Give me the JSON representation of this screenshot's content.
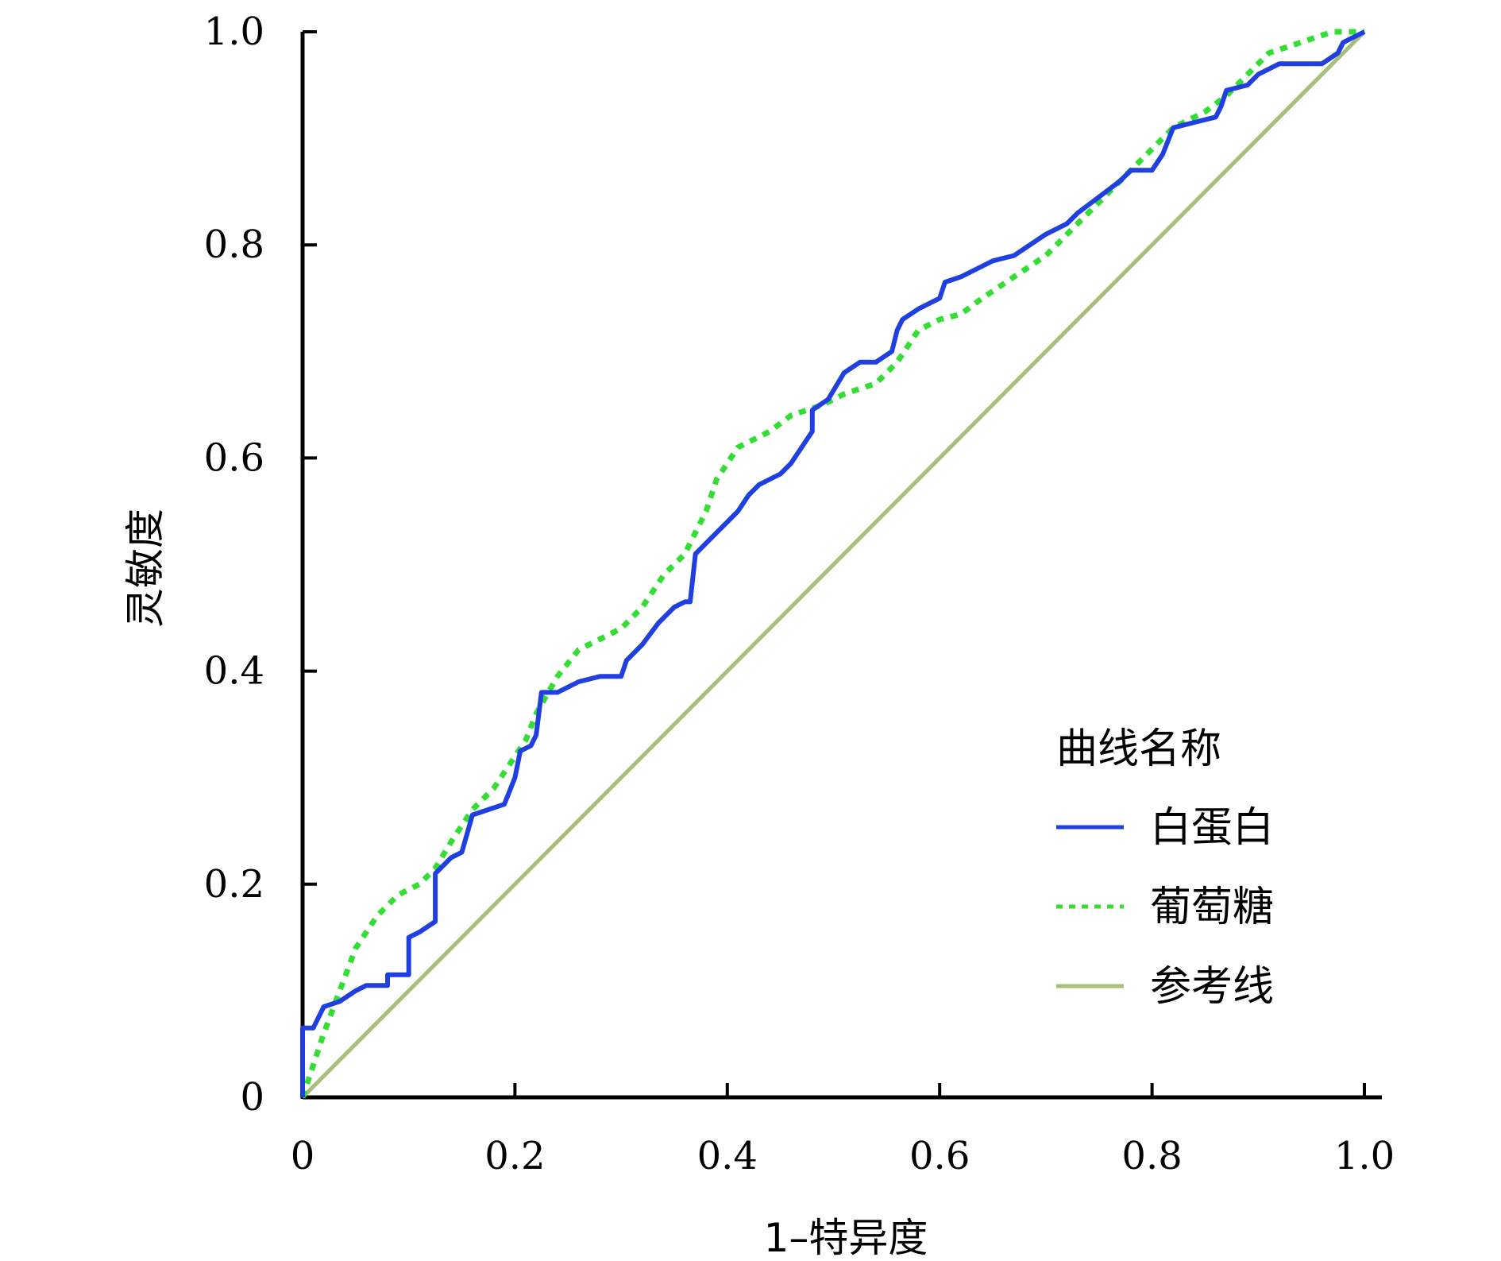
{
  "chart_data": {
    "type": "line",
    "title": "",
    "xlabel": "1–特异度",
    "ylabel": "灵敏度",
    "xlim": [
      0,
      1.0
    ],
    "ylim": [
      0,
      1.0
    ],
    "x_ticks": [
      "0",
      "0.2",
      "0.4",
      "0.6",
      "0.8",
      "1.0"
    ],
    "y_ticks": [
      "0",
      "0.2",
      "0.4",
      "0.6",
      "0.8",
      "1.0"
    ],
    "grid": false,
    "legend": {
      "title": "曲线名称",
      "position": "bottom-right"
    },
    "series": [
      {
        "name": "白蛋白",
        "color": "#1f3fe0",
        "style": "solid",
        "points": [
          [
            0,
            0
          ],
          [
            0,
            0.065
          ],
          [
            0.01,
            0.065
          ],
          [
            0.02,
            0.085
          ],
          [
            0.035,
            0.09
          ],
          [
            0.05,
            0.1
          ],
          [
            0.06,
            0.105
          ],
          [
            0.08,
            0.105
          ],
          [
            0.08,
            0.115
          ],
          [
            0.1,
            0.115
          ],
          [
            0.1,
            0.15
          ],
          [
            0.11,
            0.155
          ],
          [
            0.125,
            0.165
          ],
          [
            0.125,
            0.21
          ],
          [
            0.14,
            0.225
          ],
          [
            0.15,
            0.23
          ],
          [
            0.16,
            0.265
          ],
          [
            0.175,
            0.27
          ],
          [
            0.19,
            0.275
          ],
          [
            0.2,
            0.3
          ],
          [
            0.205,
            0.325
          ],
          [
            0.215,
            0.33
          ],
          [
            0.22,
            0.34
          ],
          [
            0.225,
            0.38
          ],
          [
            0.24,
            0.38
          ],
          [
            0.26,
            0.39
          ],
          [
            0.28,
            0.395
          ],
          [
            0.3,
            0.395
          ],
          [
            0.305,
            0.41
          ],
          [
            0.32,
            0.425
          ],
          [
            0.335,
            0.445
          ],
          [
            0.35,
            0.46
          ],
          [
            0.36,
            0.465
          ],
          [
            0.365,
            0.465
          ],
          [
            0.37,
            0.51
          ],
          [
            0.39,
            0.53
          ],
          [
            0.4,
            0.54
          ],
          [
            0.41,
            0.55
          ],
          [
            0.42,
            0.565
          ],
          [
            0.43,
            0.575
          ],
          [
            0.45,
            0.585
          ],
          [
            0.46,
            0.595
          ],
          [
            0.47,
            0.61
          ],
          [
            0.48,
            0.625
          ],
          [
            0.48,
            0.645
          ],
          [
            0.495,
            0.655
          ],
          [
            0.51,
            0.68
          ],
          [
            0.525,
            0.69
          ],
          [
            0.54,
            0.69
          ],
          [
            0.555,
            0.7
          ],
          [
            0.56,
            0.72
          ],
          [
            0.565,
            0.73
          ],
          [
            0.58,
            0.74
          ],
          [
            0.6,
            0.75
          ],
          [
            0.605,
            0.765
          ],
          [
            0.62,
            0.77
          ],
          [
            0.64,
            0.78
          ],
          [
            0.65,
            0.785
          ],
          [
            0.67,
            0.79
          ],
          [
            0.685,
            0.8
          ],
          [
            0.7,
            0.81
          ],
          [
            0.72,
            0.82
          ],
          [
            0.73,
            0.83
          ],
          [
            0.75,
            0.845
          ],
          [
            0.77,
            0.86
          ],
          [
            0.78,
            0.87
          ],
          [
            0.8,
            0.87
          ],
          [
            0.81,
            0.885
          ],
          [
            0.82,
            0.91
          ],
          [
            0.84,
            0.915
          ],
          [
            0.86,
            0.92
          ],
          [
            0.865,
            0.93
          ],
          [
            0.87,
            0.945
          ],
          [
            0.89,
            0.95
          ],
          [
            0.9,
            0.96
          ],
          [
            0.92,
            0.97
          ],
          [
            0.94,
            0.97
          ],
          [
            0.96,
            0.97
          ],
          [
            0.975,
            0.98
          ],
          [
            0.98,
            0.99
          ],
          [
            1,
            1
          ]
        ]
      },
      {
        "name": "葡萄糖",
        "color": "#33dd33",
        "style": "dotted",
        "points": [
          [
            0,
            0
          ],
          [
            0.01,
            0.03
          ],
          [
            0.02,
            0.06
          ],
          [
            0.035,
            0.1
          ],
          [
            0.05,
            0.14
          ],
          [
            0.07,
            0.17
          ],
          [
            0.09,
            0.19
          ],
          [
            0.11,
            0.2
          ],
          [
            0.125,
            0.215
          ],
          [
            0.14,
            0.24
          ],
          [
            0.16,
            0.27
          ],
          [
            0.18,
            0.29
          ],
          [
            0.2,
            0.32
          ],
          [
            0.21,
            0.335
          ],
          [
            0.22,
            0.36
          ],
          [
            0.24,
            0.395
          ],
          [
            0.26,
            0.42
          ],
          [
            0.28,
            0.43
          ],
          [
            0.3,
            0.44
          ],
          [
            0.32,
            0.46
          ],
          [
            0.34,
            0.49
          ],
          [
            0.36,
            0.51
          ],
          [
            0.38,
            0.55
          ],
          [
            0.39,
            0.58
          ],
          [
            0.41,
            0.61
          ],
          [
            0.44,
            0.625
          ],
          [
            0.46,
            0.64
          ],
          [
            0.49,
            0.65
          ],
          [
            0.51,
            0.66
          ],
          [
            0.54,
            0.67
          ],
          [
            0.56,
            0.69
          ],
          [
            0.58,
            0.72
          ],
          [
            0.6,
            0.73
          ],
          [
            0.62,
            0.735
          ],
          [
            0.64,
            0.75
          ],
          [
            0.67,
            0.77
          ],
          [
            0.7,
            0.79
          ],
          [
            0.73,
            0.82
          ],
          [
            0.75,
            0.84
          ],
          [
            0.78,
            0.87
          ],
          [
            0.8,
            0.89
          ],
          [
            0.82,
            0.91
          ],
          [
            0.85,
            0.925
          ],
          [
            0.87,
            0.94
          ],
          [
            0.89,
            0.96
          ],
          [
            0.91,
            0.98
          ],
          [
            0.94,
            0.99
          ],
          [
            0.97,
            1.0
          ],
          [
            1,
            1
          ]
        ]
      },
      {
        "name": "参考线",
        "color": "#a8bf7a",
        "style": "solid",
        "points": [
          [
            0,
            0
          ],
          [
            1,
            1
          ]
        ]
      }
    ]
  }
}
